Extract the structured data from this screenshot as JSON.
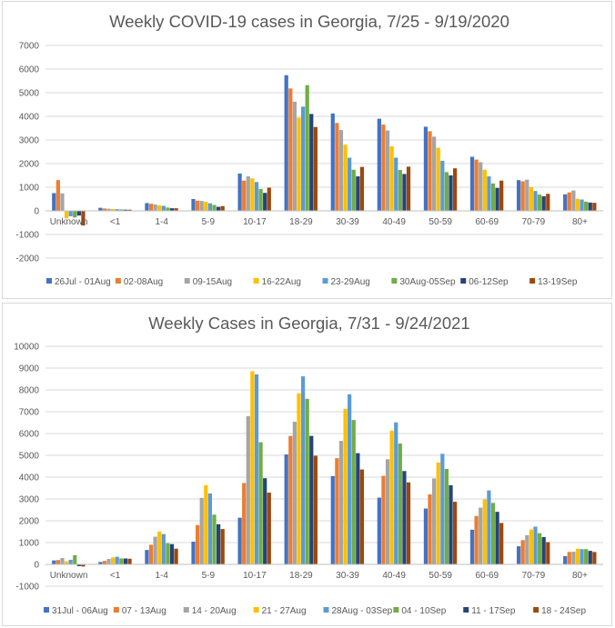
{
  "chart_data": [
    {
      "type": "bar",
      "title": "Weekly COVID-19 cases in Georgia, 7/25 - 9/19/2020",
      "xlabel": "",
      "ylabel": "",
      "ylim": [
        -2000,
        7000
      ],
      "yticks": [
        -2000,
        -1000,
        0,
        1000,
        2000,
        3000,
        4000,
        5000,
        6000,
        7000
      ],
      "grid": true,
      "legend_position": "bottom",
      "categories": [
        "Unknown",
        "<1",
        "1-4",
        "5-9",
        "10-17",
        "18-29",
        "30-39",
        "40-49",
        "50-59",
        "60-69",
        "70-79",
        "80+"
      ],
      "series": [
        {
          "name": "26Jul - 01Aug",
          "color": "#4472c4",
          "values": [
            750,
            130,
            330,
            500,
            1580,
            5740,
            4120,
            3900,
            3560,
            2290,
            1300,
            700
          ]
        },
        {
          "name": "02-08Aug",
          "color": "#ed7d31",
          "values": [
            1300,
            100,
            300,
            430,
            1280,
            5180,
            3720,
            3650,
            3370,
            2170,
            1250,
            780
          ]
        },
        {
          "name": "09-15Aug",
          "color": "#a5a5a5",
          "values": [
            740,
            90,
            270,
            420,
            1460,
            4620,
            3420,
            3400,
            3140,
            2060,
            1320,
            860
          ]
        },
        {
          "name": "16-22Aug",
          "color": "#ffc000",
          "values": [
            -320,
            80,
            230,
            380,
            1370,
            3950,
            2800,
            2730,
            2670,
            1740,
            1000,
            510
          ]
        },
        {
          "name": "23-29Aug",
          "color": "#5b9bd5",
          "values": [
            -230,
            70,
            210,
            320,
            1220,
            4410,
            2250,
            2250,
            2120,
            1460,
            840,
            480
          ]
        },
        {
          "name": "30Aug-05Sep",
          "color": "#70ad47",
          "values": [
            -280,
            60,
            140,
            250,
            930,
            5320,
            1740,
            1730,
            1640,
            1160,
            690,
            390
          ]
        },
        {
          "name": "06-12Sep",
          "color": "#264478",
          "values": [
            -200,
            50,
            110,
            170,
            760,
            4100,
            1460,
            1560,
            1500,
            970,
            620,
            350
          ]
        },
        {
          "name": "13-19Sep",
          "color": "#9e480e",
          "values": [
            -620,
            50,
            110,
            200,
            980,
            3550,
            1860,
            1870,
            1800,
            1280,
            720,
            340
          ]
        }
      ]
    },
    {
      "type": "bar",
      "title": "Weekly Cases in Georgia, 7/31 - 9/24/2021",
      "xlabel": "",
      "ylabel": "",
      "ylim": [
        -1000,
        10000
      ],
      "yticks": [
        -1000,
        0,
        1000,
        2000,
        3000,
        4000,
        5000,
        6000,
        7000,
        8000,
        9000,
        10000
      ],
      "grid": true,
      "legend_position": "bottom",
      "categories": [
        "Unknown",
        "<1",
        "1-4",
        "5-9",
        "10-17",
        "18-29",
        "30-39",
        "40-49",
        "50-59",
        "60-69",
        "70-79",
        "80+"
      ],
      "series": [
        {
          "name": "31Jul - 06Aug",
          "color": "#4472c4",
          "values": [
            180,
            110,
            660,
            1040,
            2140,
            5040,
            4050,
            3060,
            2560,
            1590,
            830,
            380
          ]
        },
        {
          "name": "07 - 13Aug",
          "color": "#ed7d31",
          "values": [
            200,
            160,
            900,
            1800,
            3730,
            5890,
            4870,
            4060,
            3210,
            2220,
            1110,
            570
          ]
        },
        {
          "name": "14 - 20Aug",
          "color": "#a5a5a5",
          "values": [
            290,
            250,
            1270,
            3050,
            6800,
            6540,
            5660,
            4820,
            3940,
            2600,
            1340,
            580
          ]
        },
        {
          "name": "21 - 27Aug",
          "color": "#ffc000",
          "values": [
            140,
            320,
            1510,
            3630,
            8850,
            7840,
            7130,
            6130,
            4670,
            2980,
            1600,
            720
          ]
        },
        {
          "name": "28Aug - 03Sep",
          "color": "#5b9bd5",
          "values": [
            210,
            350,
            1390,
            3250,
            8710,
            8620,
            7800,
            6510,
            5070,
            3390,
            1730,
            700
          ]
        },
        {
          "name": "04 - 10Sep",
          "color": "#70ad47",
          "values": [
            420,
            270,
            970,
            2280,
            5600,
            7590,
            6620,
            5540,
            4380,
            2820,
            1430,
            700
          ]
        },
        {
          "name": "11 - 17Sep",
          "color": "#264478",
          "values": [
            -80,
            270,
            930,
            1840,
            3950,
            5890,
            5100,
            4280,
            3630,
            2410,
            1250,
            620
          ]
        },
        {
          "name": "18 - 24Sep",
          "color": "#9e480e",
          "values": [
            -100,
            260,
            720,
            1620,
            3290,
            4980,
            4350,
            3760,
            2870,
            1900,
            1020,
            570
          ]
        }
      ]
    }
  ]
}
